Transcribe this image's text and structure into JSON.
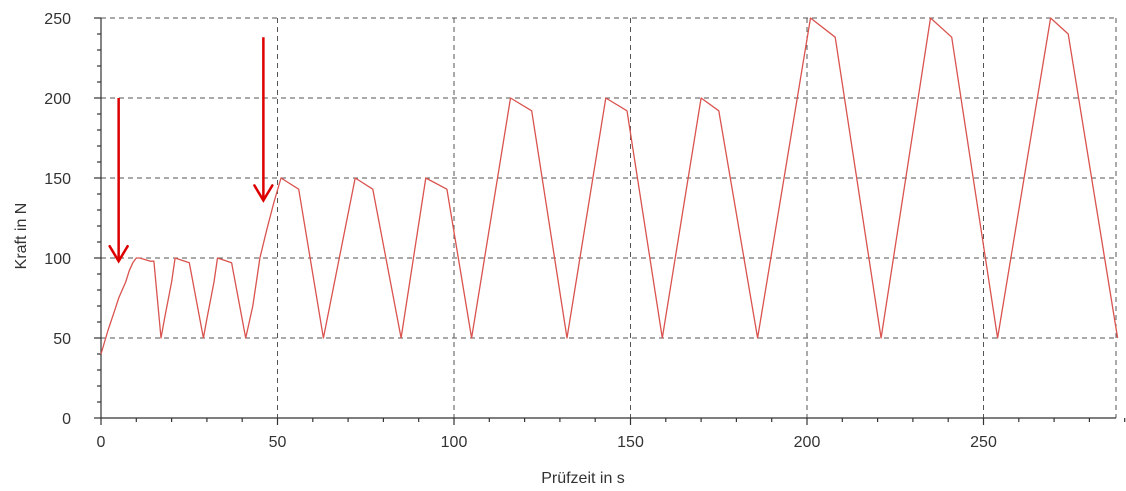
{
  "chart_data": {
    "type": "line",
    "xlabel": "Prüfzeit in s",
    "ylabel": "Kraft in N",
    "xlim": [
      0,
      290
    ],
    "ylim": [
      0,
      250
    ],
    "xticks": [
      0,
      50,
      100,
      150,
      200,
      250
    ],
    "yticks": [
      0,
      50,
      100,
      150,
      200,
      250
    ],
    "x_tick_labels": [
      "0",
      "50",
      "100",
      "150",
      "200",
      "250"
    ],
    "y_tick_labels": [
      "0",
      "50",
      "100",
      "150",
      "200",
      "250"
    ],
    "grid": true,
    "series": [
      {
        "color": "#d9534f",
        "points": [
          [
            0,
            40
          ],
          [
            2,
            55
          ],
          [
            4,
            68
          ],
          [
            5,
            75
          ],
          [
            6,
            80
          ],
          [
            7,
            85
          ],
          [
            8,
            92
          ],
          [
            9,
            97
          ],
          [
            10,
            100
          ],
          [
            11,
            100
          ],
          [
            14,
            98
          ],
          [
            15,
            98
          ],
          [
            17,
            50
          ],
          [
            18,
            62
          ],
          [
            20,
            85
          ],
          [
            21,
            100
          ],
          [
            25,
            97
          ],
          [
            29,
            50
          ],
          [
            30,
            62
          ],
          [
            32,
            85
          ],
          [
            33,
            100
          ],
          [
            37,
            97
          ],
          [
            41,
            50
          ],
          [
            43,
            70
          ],
          [
            45,
            100
          ],
          [
            47,
            118
          ],
          [
            49,
            135
          ],
          [
            51,
            150
          ],
          [
            56,
            143
          ],
          [
            63,
            50
          ],
          [
            72,
            150
          ],
          [
            77,
            143
          ],
          [
            85,
            50
          ],
          [
            92,
            150
          ],
          [
            98,
            143
          ],
          [
            105,
            50
          ],
          [
            116,
            200
          ],
          [
            122,
            192
          ],
          [
            132,
            50
          ],
          [
            143,
            200
          ],
          [
            149,
            192
          ],
          [
            159,
            50
          ],
          [
            170,
            200
          ],
          [
            175,
            192
          ],
          [
            186,
            50
          ],
          [
            201,
            250
          ],
          [
            208,
            238
          ],
          [
            221,
            50
          ],
          [
            235,
            250
          ],
          [
            241,
            238
          ],
          [
            254,
            50
          ],
          [
            269,
            250
          ],
          [
            274,
            240
          ],
          [
            288,
            50
          ]
        ]
      }
    ],
    "annotations": [
      {
        "type": "arrow",
        "color": "#dd0000",
        "from": [
          5,
          200
        ],
        "to": [
          5,
          98
        ]
      },
      {
        "type": "arrow",
        "color": "#dd0000",
        "from": [
          46,
          238
        ],
        "to": [
          46,
          136
        ]
      }
    ]
  }
}
